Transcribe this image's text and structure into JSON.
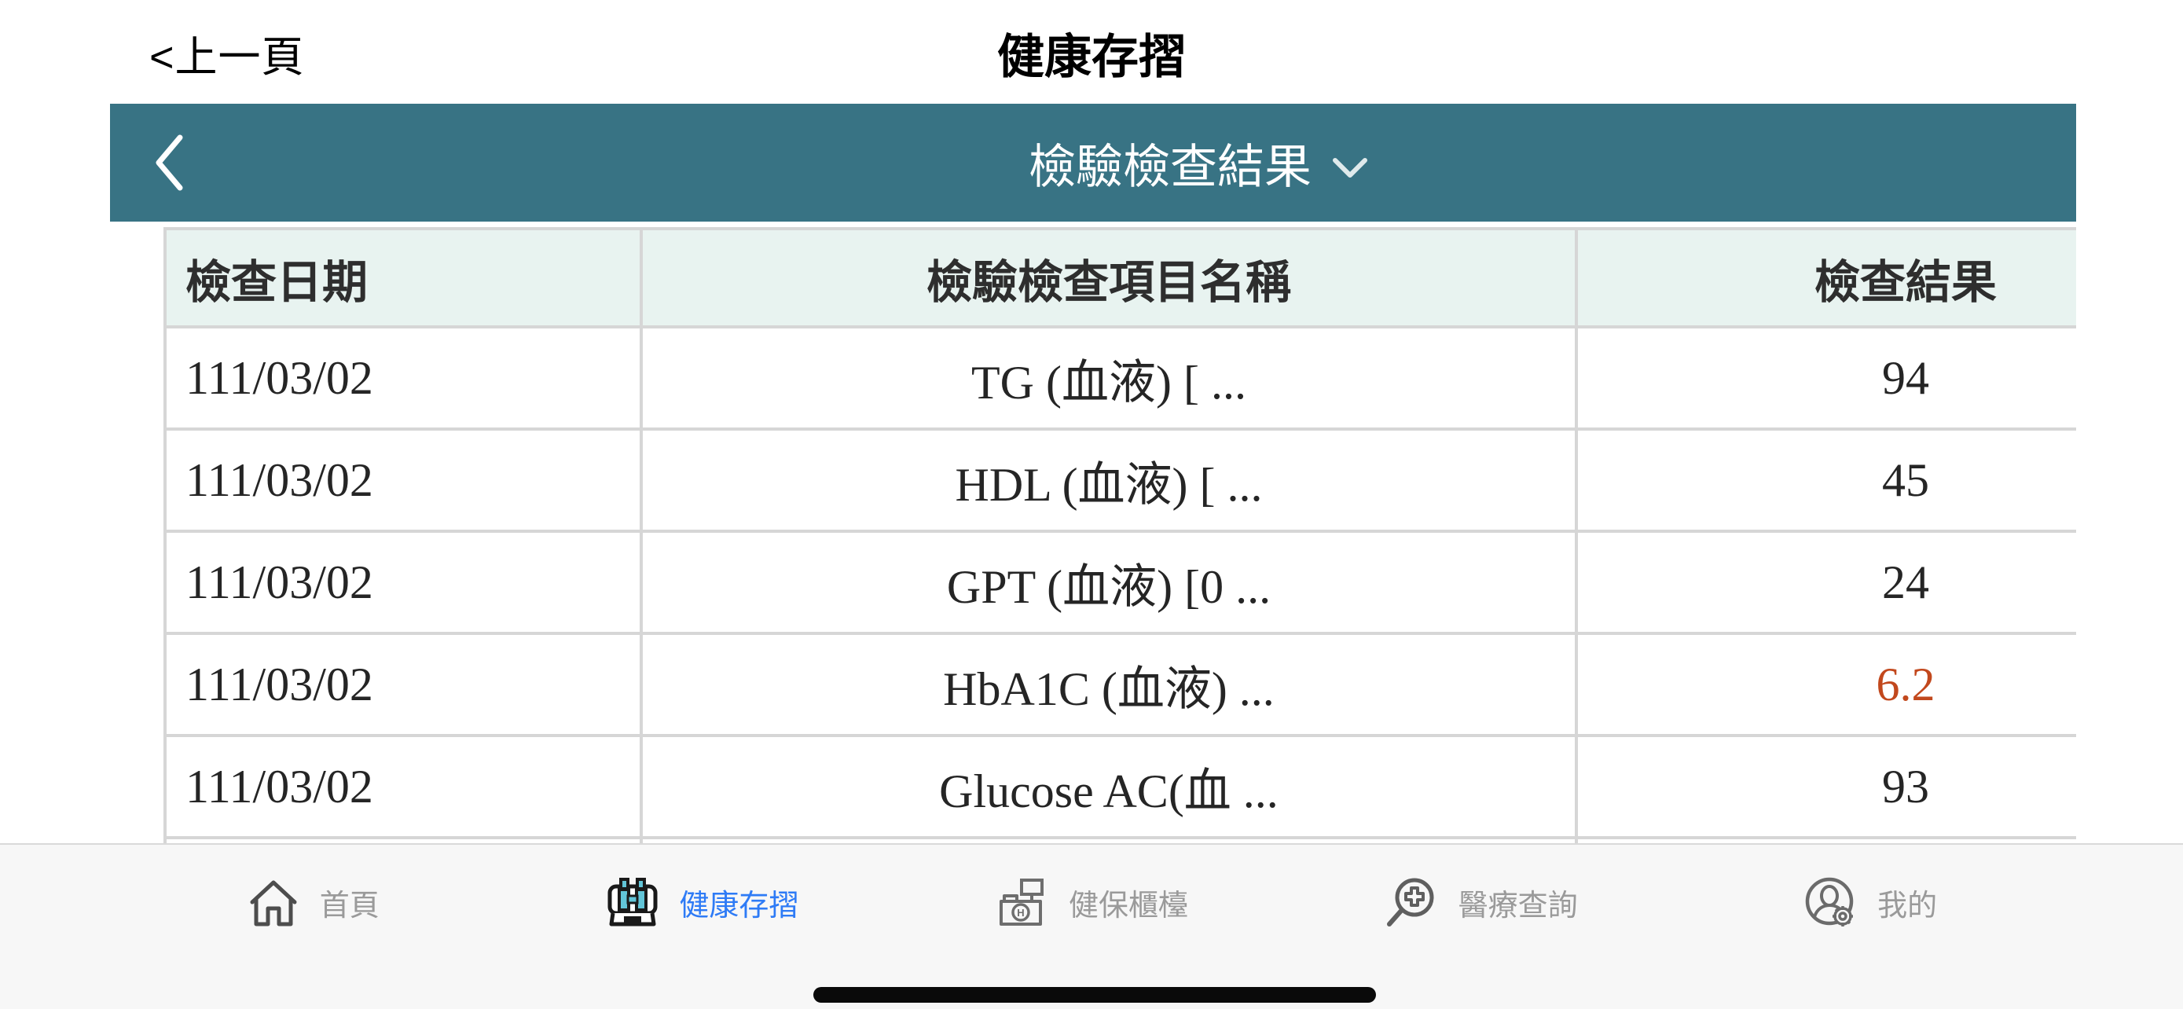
{
  "topbar": {
    "back_label": "<上一頁",
    "title": "健康存摺"
  },
  "teal_header": {
    "title": "檢驗檢查結果",
    "bg_color": "#387384",
    "text_color": "#ffffff",
    "icons": [
      "back-chevron",
      "chevron-down"
    ]
  },
  "table": {
    "headers": {
      "date": "檢查日期",
      "name": "檢驗檢查項目名稱",
      "result": "檢查結果"
    },
    "header_bg": "#e8f3f0",
    "link_color": "#2f7081",
    "abnormal_color": "#c2481d",
    "rows": [
      {
        "date": "111/03/02",
        "name": "TG (血液) [ ...",
        "result": "94",
        "abnormal": false
      },
      {
        "date": "111/03/02",
        "name": "HDL (血液) [ ...",
        "result": "45",
        "abnormal": false
      },
      {
        "date": "111/03/02",
        "name": "GPT (血液) [0 ...",
        "result": "24",
        "abnormal": false
      },
      {
        "date": "111/03/02",
        "name": "HbA1C (血液) ...",
        "result": "6.2",
        "abnormal": true
      },
      {
        "date": "111/03/02",
        "name": "Glucose AC(血 ...",
        "result": "93",
        "abnormal": false
      },
      {
        "date": "",
        "name": "",
        "result": "",
        "abnormal": false
      }
    ]
  },
  "tabbar": {
    "active_color": "#2e7bf6",
    "inactive_color": "#9a9a9a",
    "items": [
      {
        "label": "首頁",
        "icon": "home-icon",
        "active": false
      },
      {
        "label": "健康存摺",
        "icon": "health-passbook-icon",
        "active": true
      },
      {
        "label": "健保櫃檯",
        "icon": "nhi-counter-icon",
        "active": false
      },
      {
        "label": "醫療查詢",
        "icon": "medical-search-icon",
        "active": false
      },
      {
        "label": "我的",
        "icon": "profile-gear-icon",
        "active": false
      }
    ]
  }
}
